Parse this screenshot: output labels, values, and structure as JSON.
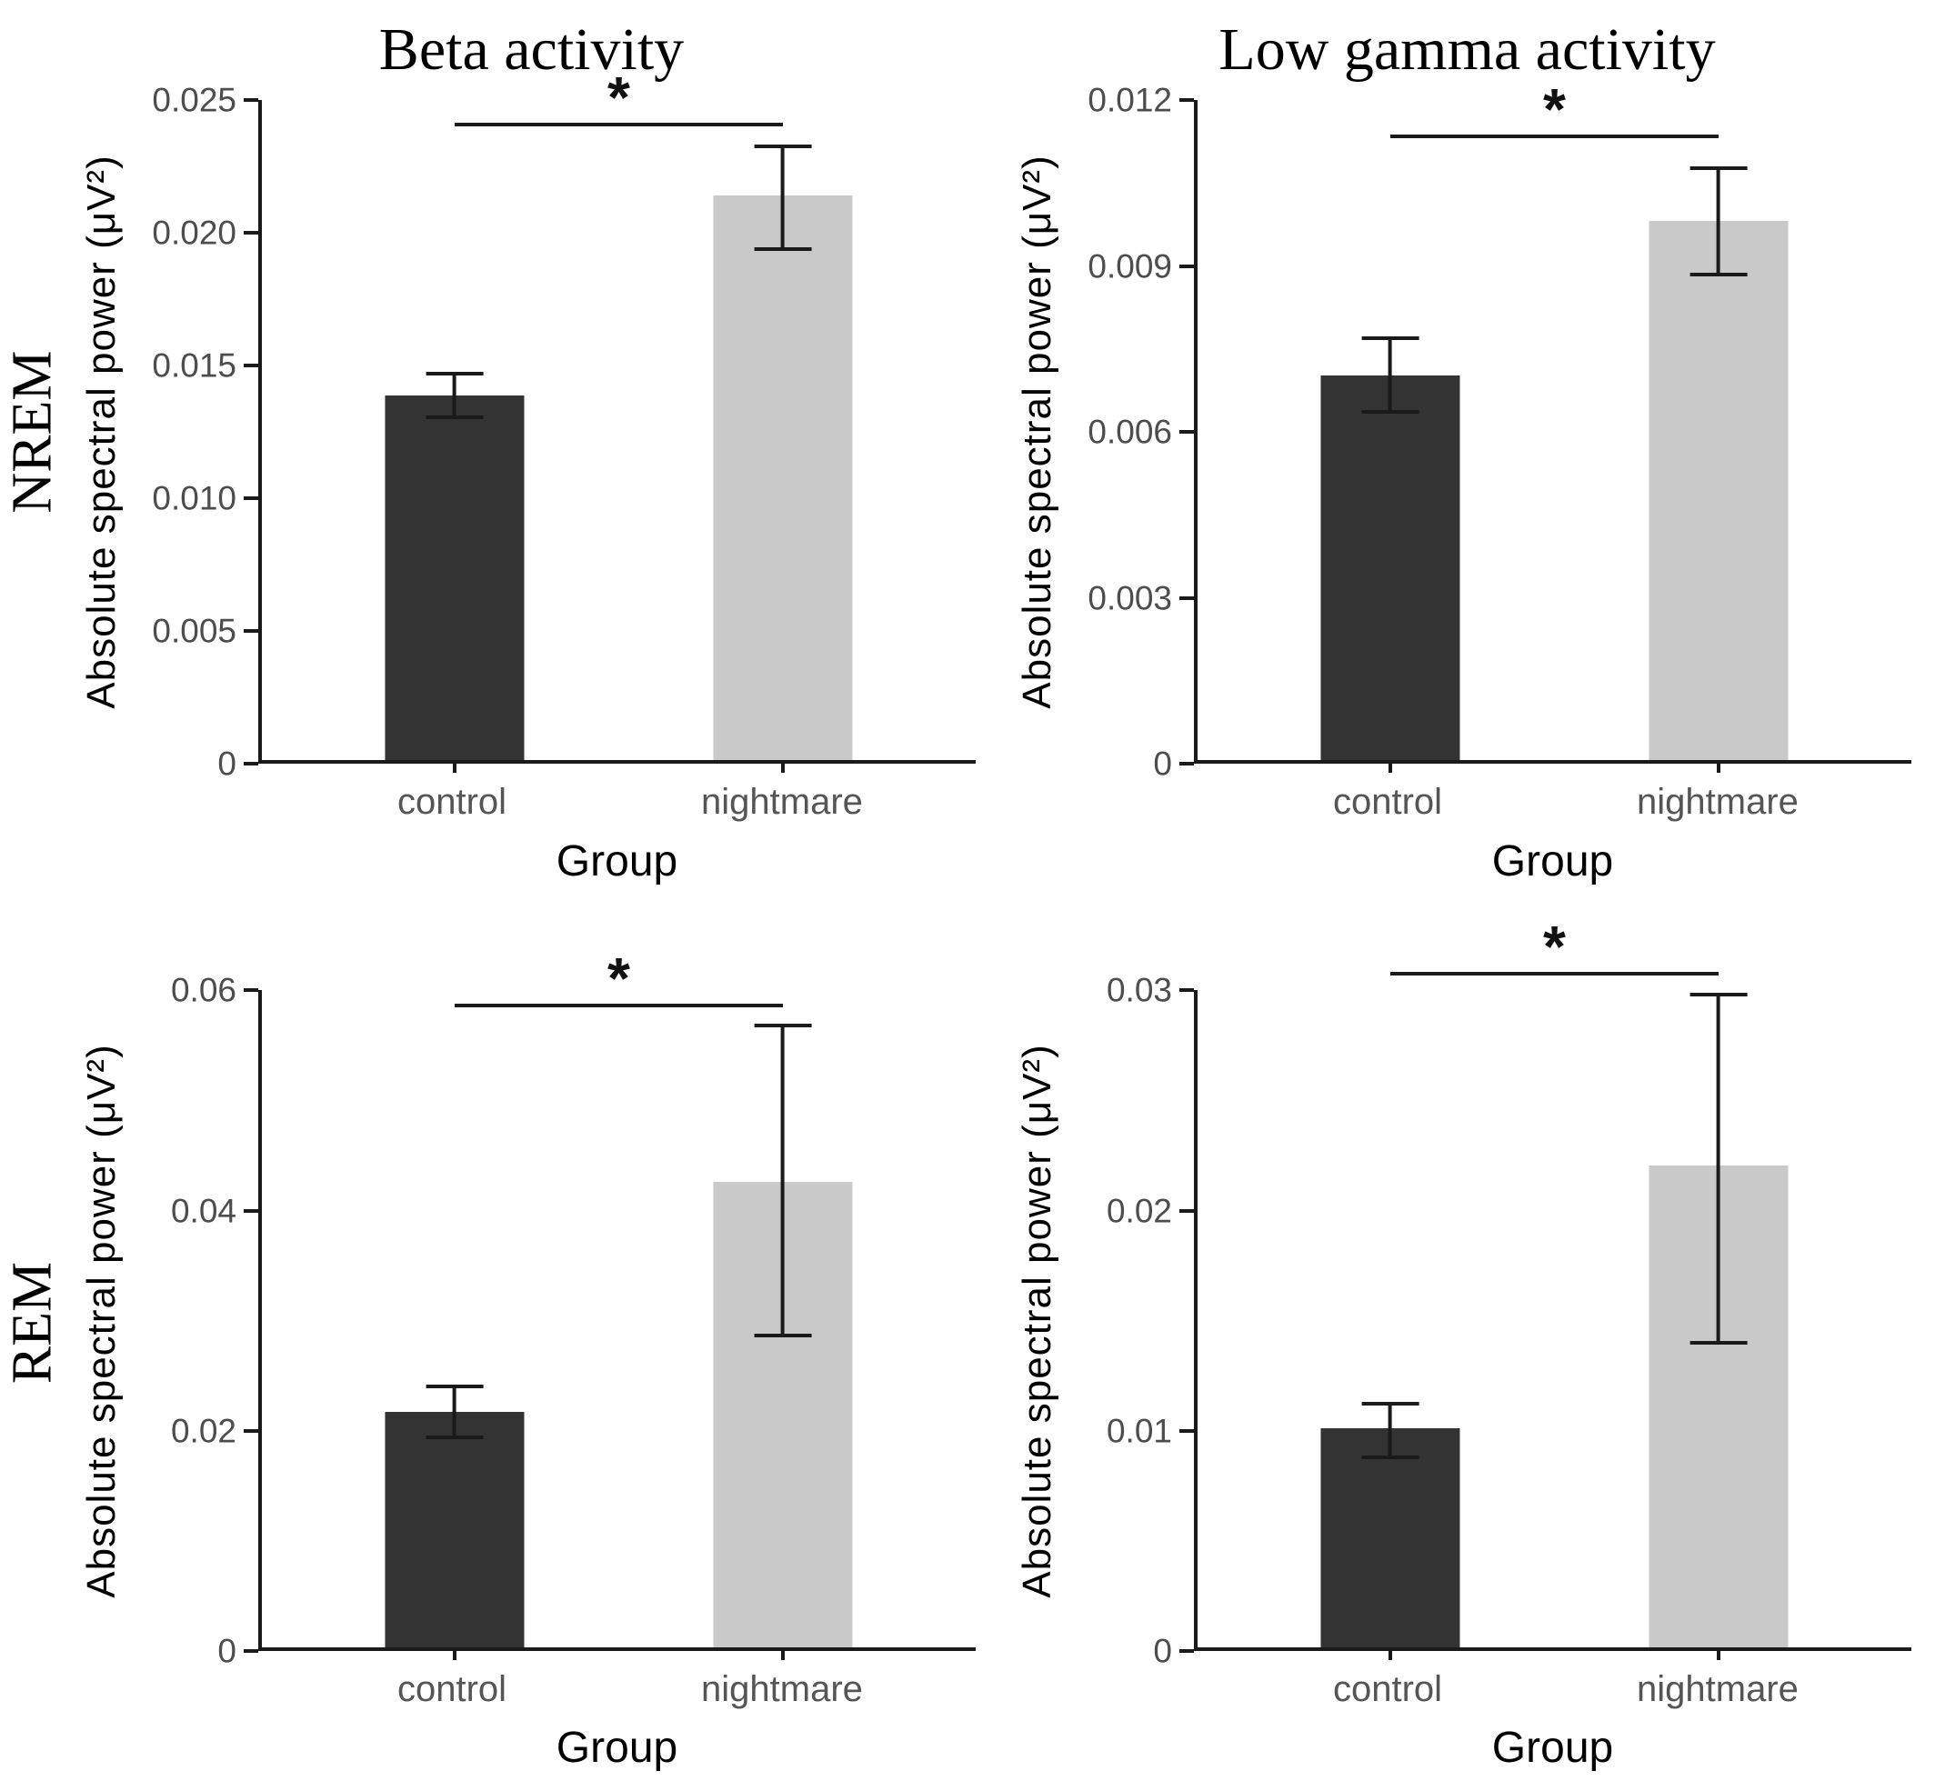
{
  "figure": {
    "row_labels": [
      "NREM",
      "REM"
    ],
    "col_titles": [
      "Beta activity",
      "Low gamma activity"
    ],
    "x_axis_title": "Group",
    "y_axis_label": "Absolute spectral power (μV²)",
    "categories": [
      "control",
      "nightmare"
    ],
    "significance_marker": "*",
    "colors": {
      "control_bar": "#333333",
      "nightmare_bar": "#c9c9c9",
      "axis_line": "#1a1a1a",
      "tick_text": "#4d4d4d",
      "category_text": "#555555",
      "title_text": "#000000"
    }
  },
  "chart_data": [
    {
      "type": "bar",
      "title": "Beta activity",
      "row": "NREM",
      "xlabel": "Group",
      "ylabel": "Absolute spectral power (μV²)",
      "categories": [
        "control",
        "nightmare"
      ],
      "values": [
        0.0138,
        0.0214
      ],
      "error_low": [
        0.0129,
        0.0193
      ],
      "error_high": [
        0.0147,
        0.0233
      ],
      "ylim": [
        0,
        0.025
      ],
      "yticks": [
        0,
        0.005,
        0.01,
        0.015,
        0.02,
        0.025
      ],
      "ytick_labels": [
        "0",
        "0.005",
        "0.010",
        "0.015",
        "0.020",
        "0.025"
      ],
      "grid": false,
      "legend": false,
      "significance": "*",
      "sig_y": 0.024
    },
    {
      "type": "bar",
      "title": "Low gamma activity",
      "row": "NREM",
      "xlabel": "Group",
      "ylabel": "Absolute spectral power (μV²)",
      "categories": [
        "control",
        "nightmare"
      ],
      "values": [
        0.007,
        0.0098
      ],
      "error_low": [
        0.0063,
        0.0088
      ],
      "error_high": [
        0.0077,
        0.0108
      ],
      "ylim": [
        0,
        0.012
      ],
      "yticks": [
        0,
        0.003,
        0.006,
        0.009,
        0.012
      ],
      "ytick_labels": [
        "0",
        "0.003",
        "0.006",
        "0.009",
        "0.012"
      ],
      "grid": false,
      "legend": false,
      "significance": "*",
      "sig_y": 0.0113
    },
    {
      "type": "bar",
      "title": "Beta activity",
      "row": "REM",
      "xlabel": "Group",
      "ylabel": "Absolute spectral power (μV²)",
      "categories": [
        "control",
        "nightmare"
      ],
      "values": [
        0.0215,
        0.0425
      ],
      "error_low": [
        0.019,
        0.0283
      ],
      "error_high": [
        0.024,
        0.057
      ],
      "ylim": [
        0,
        0.06
      ],
      "yticks": [
        0,
        0.02,
        0.04,
        0.06
      ],
      "ytick_labels": [
        "0",
        "0.02",
        "0.04",
        "0.06"
      ],
      "grid": false,
      "legend": false,
      "significance": "*",
      "sig_y": 0.0585
    },
    {
      "type": "bar",
      "title": "Low gamma activity",
      "row": "REM",
      "xlabel": "Group",
      "ylabel": "Absolute spectral power (μV²)",
      "categories": [
        "control",
        "nightmare"
      ],
      "values": [
        0.01,
        0.022
      ],
      "error_low": [
        0.0086,
        0.0138
      ],
      "error_high": [
        0.0112,
        0.0299
      ],
      "ylim": [
        0,
        0.03
      ],
      "yticks": [
        0,
        0.01,
        0.02,
        0.03
      ],
      "ytick_labels": [
        "0",
        "0.01",
        "0.02",
        "0.03"
      ],
      "grid": false,
      "legend": false,
      "significance": "*",
      "sig_y": 0.0307
    }
  ]
}
